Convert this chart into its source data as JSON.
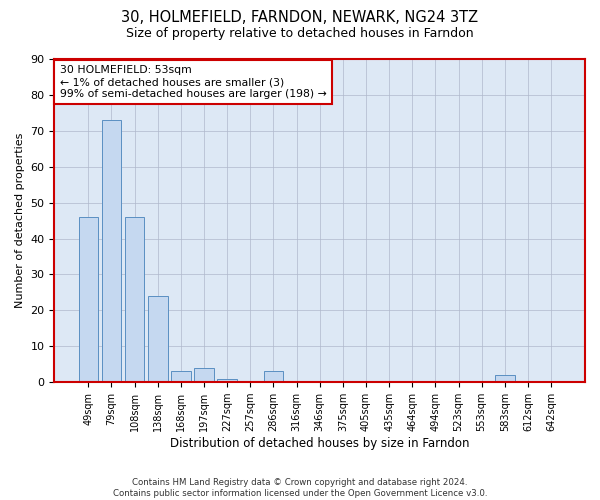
{
  "title": "30, HOLMEFIELD, FARNDON, NEWARK, NG24 3TZ",
  "subtitle": "Size of property relative to detached houses in Farndon",
  "xlabel": "Distribution of detached houses by size in Farndon",
  "ylabel": "Number of detached properties",
  "categories": [
    "49sqm",
    "79sqm",
    "108sqm",
    "138sqm",
    "168sqm",
    "197sqm",
    "227sqm",
    "257sqm",
    "286sqm",
    "316sqm",
    "346sqm",
    "375sqm",
    "405sqm",
    "435sqm",
    "464sqm",
    "494sqm",
    "523sqm",
    "553sqm",
    "583sqm",
    "612sqm",
    "642sqm"
  ],
  "values": [
    46,
    73,
    46,
    24,
    3,
    4,
    1,
    0,
    3,
    0,
    0,
    0,
    0,
    0,
    0,
    0,
    0,
    0,
    2,
    0,
    0
  ],
  "bar_color": "#c5d8f0",
  "bar_edge_color": "#5a8fc2",
  "annotation_text": "30 HOLMEFIELD: 53sqm\n← 1% of detached houses are smaller (3)\n99% of semi-detached houses are larger (198) →",
  "annotation_box_color": "#ffffff",
  "annotation_box_edge_color": "#cc0000",
  "ylim": [
    0,
    90
  ],
  "yticks": [
    0,
    10,
    20,
    30,
    40,
    50,
    60,
    70,
    80,
    90
  ],
  "grid_color": "#b0b8cc",
  "bg_color": "#dde8f5",
  "spine_color": "#cc0000",
  "footer_line1": "Contains HM Land Registry data © Crown copyright and database right 2024.",
  "footer_line2": "Contains public sector information licensed under the Open Government Licence v3.0."
}
